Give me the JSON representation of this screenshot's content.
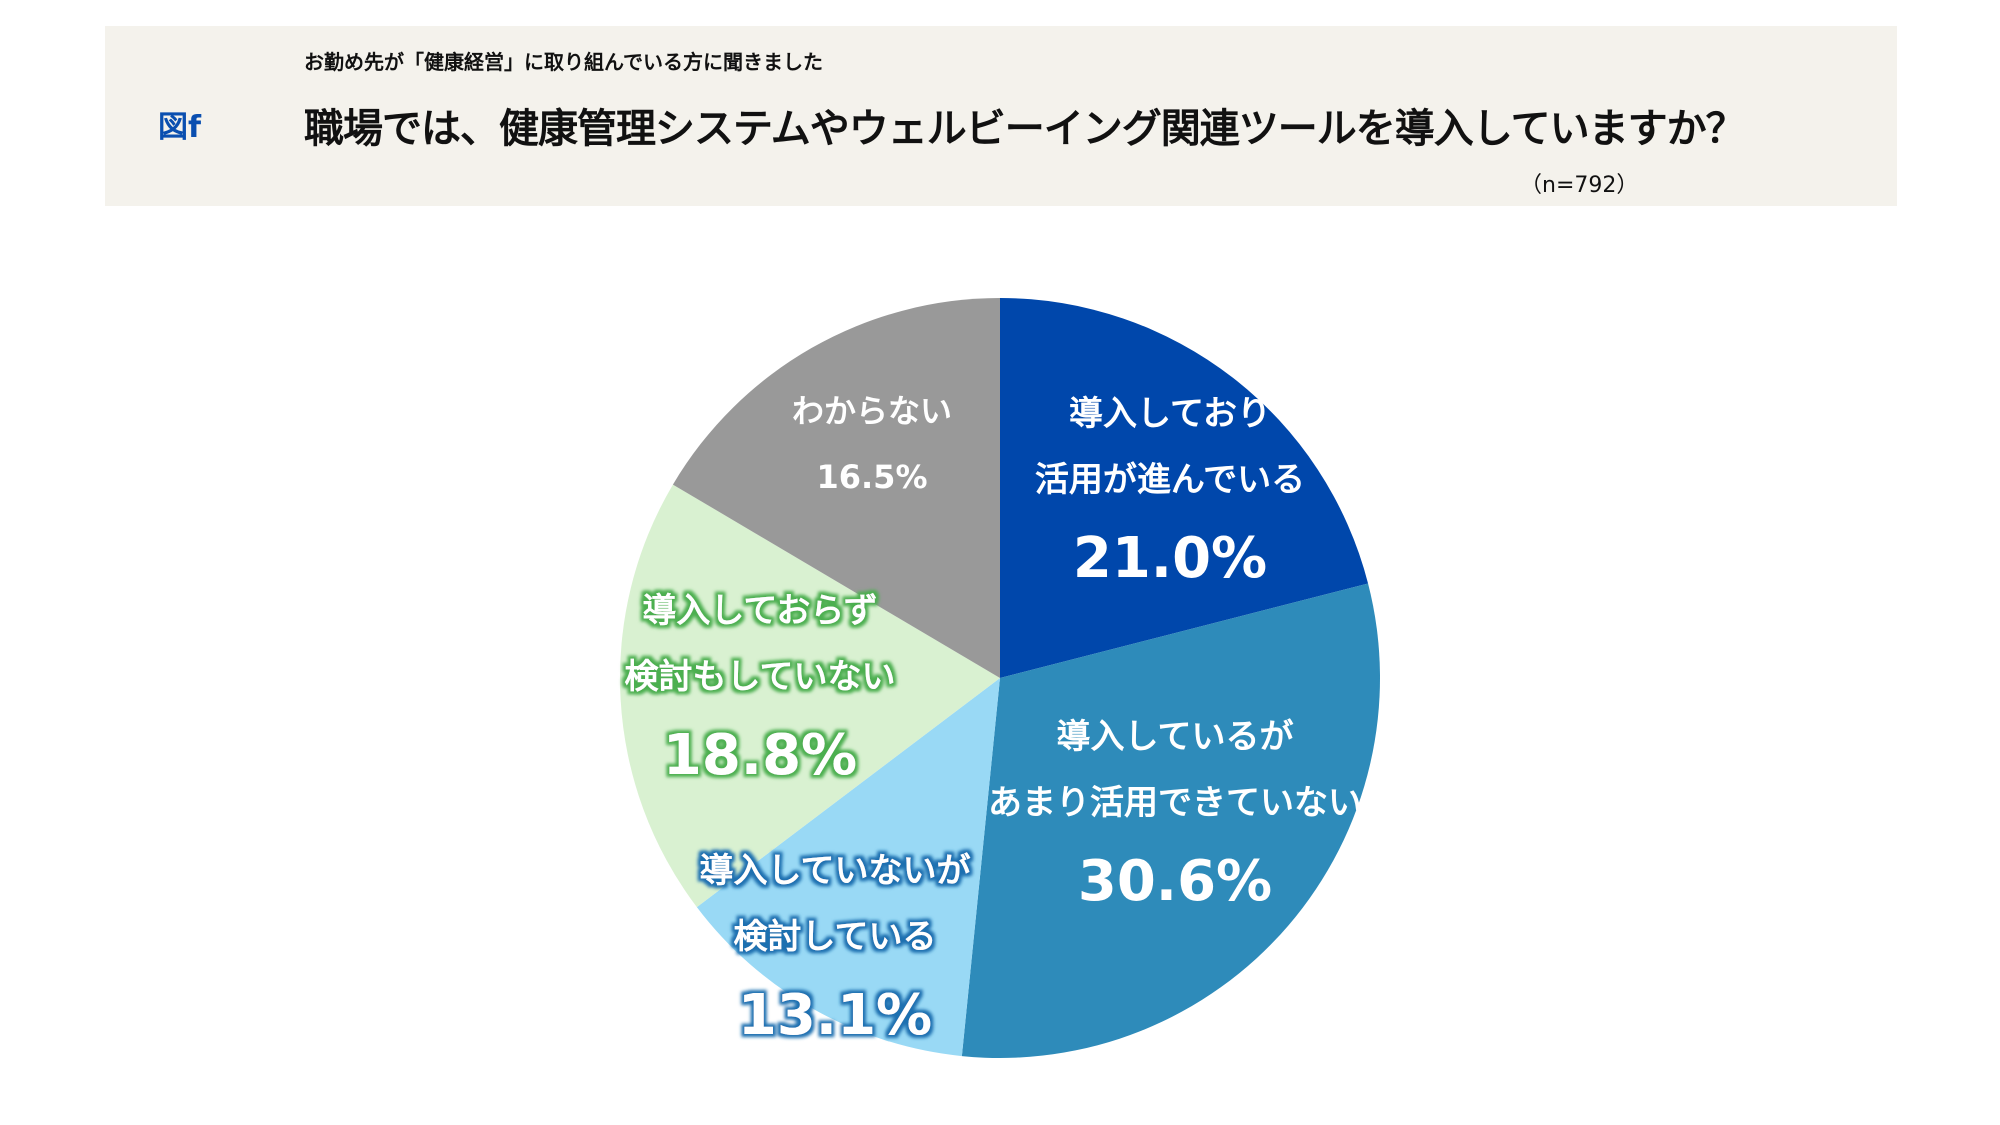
{
  "header": {
    "figure_label": "図f",
    "subtitle": "お勤め先が「健康経営」に取り組んでいる方に聞きました",
    "title": "職場では、健康管理システムやウェルビーイング関連ツールを導入していますか？",
    "sample_size": "（n=792）"
  },
  "chart_data": {
    "type": "pie",
    "title": "職場では、健康管理システムやウェルビーイング関連ツールを導入していますか？",
    "start": "12 o'clock",
    "direction": "clockwise",
    "slices": [
      {
        "lines": [
          "導入しており",
          "活用が進んでいる"
        ],
        "value": 21.0,
        "label": "21.0%",
        "color": "#0047ab",
        "text_color": "#ffffff",
        "glow": ""
      },
      {
        "lines": [
          "導入しているが",
          "あまり活用できていない"
        ],
        "value": 30.6,
        "label": "30.6%",
        "color": "#2e8bba",
        "text_color": "#ffffff",
        "glow": ""
      },
      {
        "lines": [
          "導入していないが",
          "検討している"
        ],
        "value": 13.1,
        "label": "13.1%",
        "color": "#99d9f5",
        "text_color": "#ffffff",
        "glow": "#1f6fb0"
      },
      {
        "lines": [
          "導入しておらず",
          "検討もしていない"
        ],
        "value": 18.8,
        "label": "18.8%",
        "color": "#d9f1d1",
        "text_color": "#ffffff",
        "glow": "#4caf50"
      },
      {
        "lines": [
          "わからない"
        ],
        "value": 16.5,
        "label": "16.5%",
        "color": "#999999",
        "text_color": "#ffffff",
        "glow": ""
      }
    ]
  }
}
